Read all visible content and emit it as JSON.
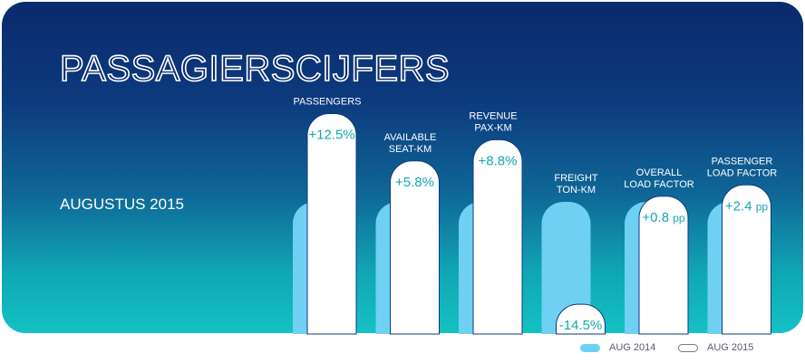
{
  "title": "PASSAGIERSCIJFERS",
  "subtitle": "AUGUSTUS 2015",
  "colors": {
    "aug_2014": "#6fd0f3",
    "aug_2015": "#ffffff",
    "value_text": "#14a8b3"
  },
  "legend": {
    "aug_2014": "AUG 2014",
    "aug_2015": "AUG 2015"
  },
  "chart_data": {
    "type": "bar",
    "categories": [
      [
        "PASSENGERS"
      ],
      [
        "AVAILABLE",
        "SEAT-KM"
      ],
      [
        "REVENUE",
        "PAX-KM"
      ],
      [
        "FREIGHT",
        "TON-KM"
      ],
      [
        "OVERALL",
        "LOAD FACTOR"
      ],
      [
        "PASSENGER",
        "LOAD FACTOR"
      ]
    ],
    "labels": [
      "+12.5%",
      "+5.8%",
      "+8.8%",
      "-14.5%",
      "+0.8 pp",
      "+2.4 pp"
    ],
    "series": [
      {
        "name": "AUG 2014",
        "values": [
          100,
          100,
          100,
          100,
          100,
          100
        ]
      },
      {
        "name": "AUG 2015",
        "values": [
          112.5,
          105.8,
          108.8,
          85.5,
          100.8,
          102.4
        ]
      }
    ]
  }
}
